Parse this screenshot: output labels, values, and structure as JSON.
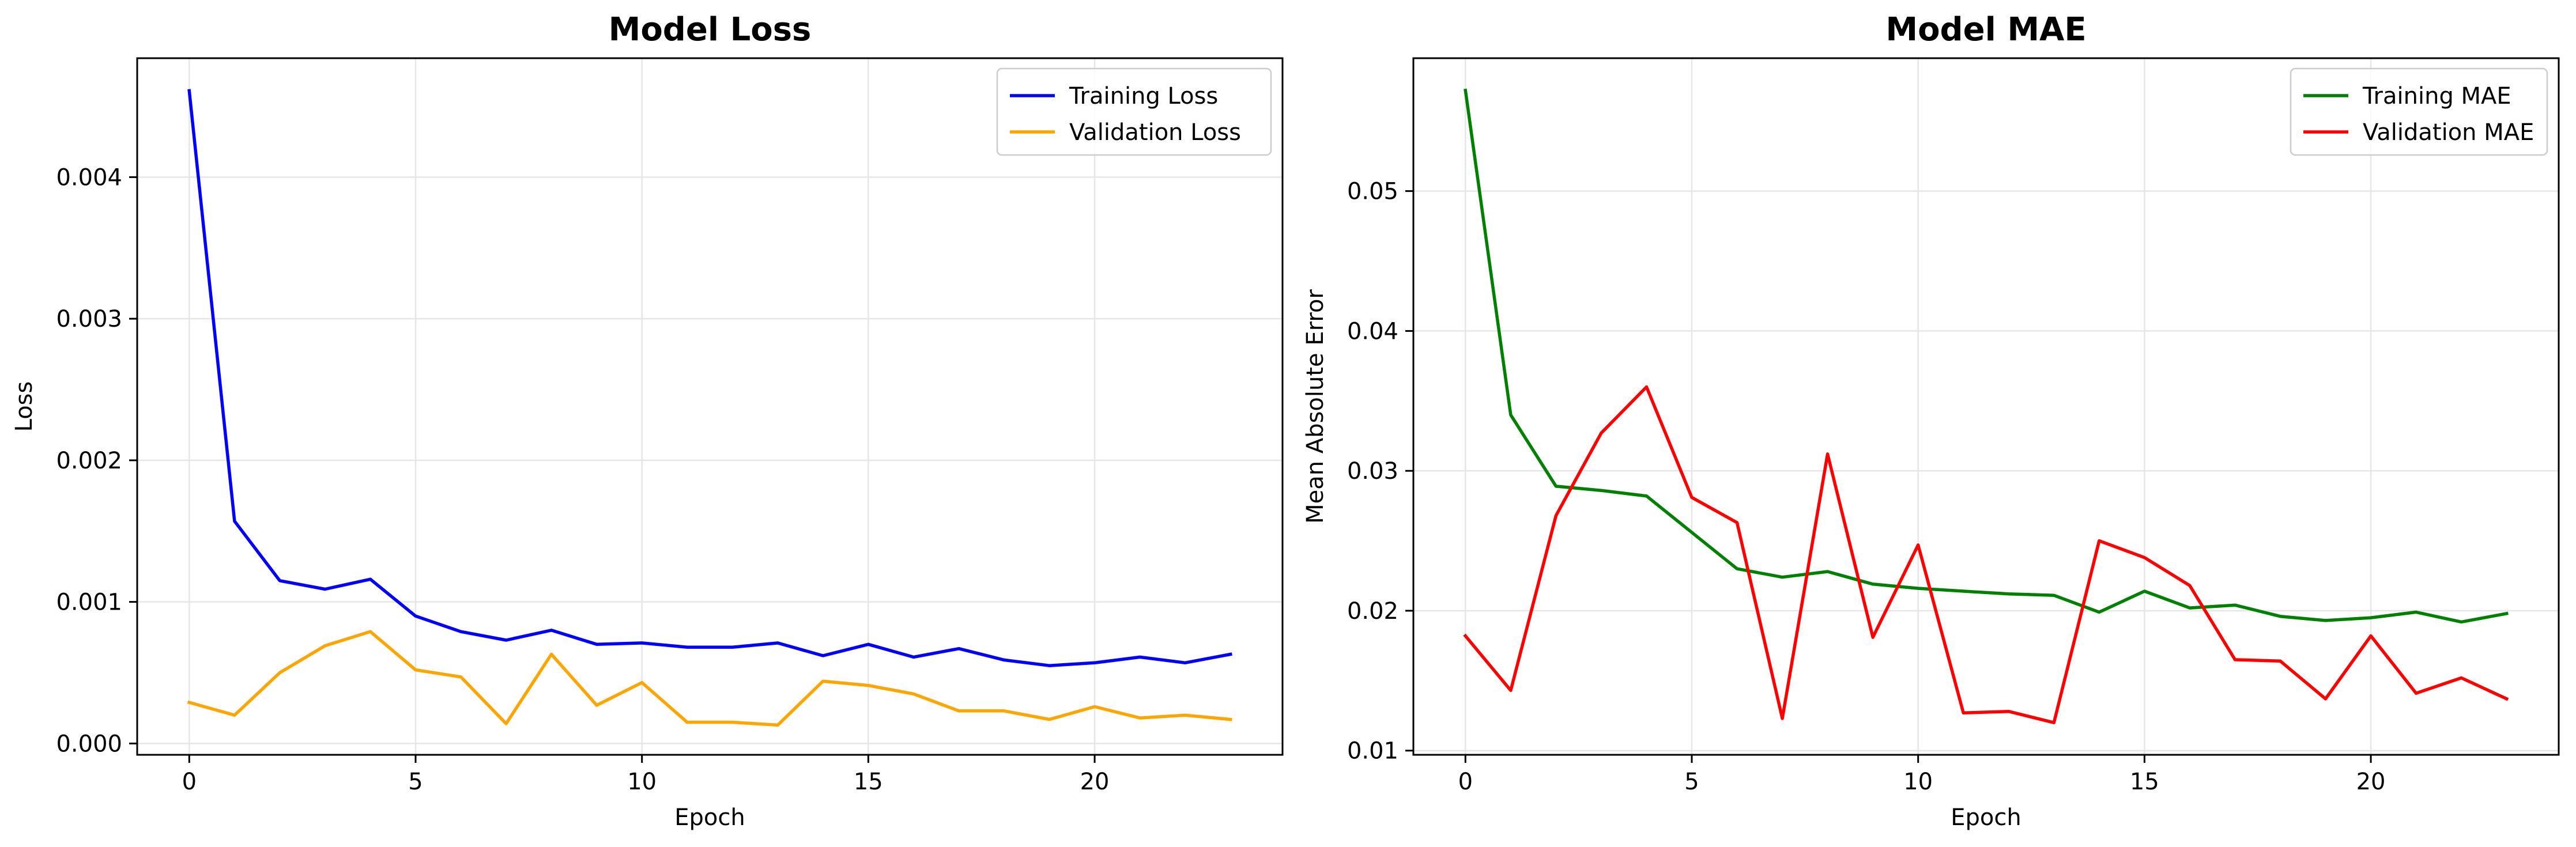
{
  "chart_data": [
    {
      "type": "line",
      "title": "Model Loss",
      "xlabel": "Epoch",
      "ylabel": "Loss",
      "xlim": [
        -1.15,
        24.15
      ],
      "ylim": [
        -8e-05,
        0.00484
      ],
      "xticks": [
        0,
        5,
        10,
        15,
        20
      ],
      "yticks": [
        0.0,
        0.001,
        0.002,
        0.003,
        0.004
      ],
      "xtick_labels": [
        "0",
        "5",
        "10",
        "15",
        "20"
      ],
      "ytick_labels": [
        "0.000",
        "0.001",
        "0.002",
        "0.003",
        "0.004"
      ],
      "grid": true,
      "legend": "upper right",
      "x": [
        0,
        1,
        2,
        3,
        4,
        5,
        6,
        7,
        8,
        9,
        10,
        11,
        12,
        13,
        14,
        15,
        16,
        17,
        18,
        19,
        20,
        21,
        22,
        23
      ],
      "series": [
        {
          "name": "Training Loss",
          "color": "#0000ff",
          "values": [
            0.00461,
            0.00157,
            0.00115,
            0.00109,
            0.00116,
            0.0009,
            0.00079,
            0.00073,
            0.0008,
            0.0007,
            0.00071,
            0.00068,
            0.00068,
            0.00071,
            0.00062,
            0.0007,
            0.00061,
            0.00067,
            0.00059,
            0.00055,
            0.00057,
            0.00061,
            0.00057,
            0.00063
          ]
        },
        {
          "name": "Validation Loss",
          "color": "#ffa500",
          "values": [
            0.00029,
            0.0002,
            0.0005,
            0.00069,
            0.00079,
            0.00052,
            0.00047,
            0.00014,
            0.00063,
            0.00027,
            0.00043,
            0.00015,
            0.00015,
            0.00013,
            0.00044,
            0.00041,
            0.00035,
            0.00023,
            0.00023,
            0.00017,
            0.00026,
            0.00018,
            0.0002,
            0.00017
          ]
        }
      ]
    },
    {
      "type": "line",
      "title": "Model MAE",
      "xlabel": "Epoch",
      "ylabel": "Mean Absolute Error",
      "xlim": [
        -1.15,
        24.15
      ],
      "ylim": [
        0.0097,
        0.0595
      ],
      "xticks": [
        0,
        5,
        10,
        15,
        20
      ],
      "yticks": [
        0.01,
        0.02,
        0.03,
        0.04,
        0.05
      ],
      "xtick_labels": [
        "0",
        "5",
        "10",
        "15",
        "20"
      ],
      "ytick_labels": [
        "0.01",
        "0.02",
        "0.03",
        "0.04",
        "0.05"
      ],
      "grid": true,
      "legend": "upper right",
      "x": [
        0,
        1,
        2,
        3,
        4,
        5,
        6,
        7,
        8,
        9,
        10,
        11,
        12,
        13,
        14,
        15,
        16,
        17,
        18,
        19,
        20,
        21,
        22,
        23
      ],
      "series": [
        {
          "name": "Training MAE",
          "color": "#008000",
          "values": [
            0.0572,
            0.034,
            0.0289,
            0.0286,
            0.0282,
            0.0256,
            0.023,
            0.0224,
            0.0228,
            0.0219,
            0.0216,
            0.0214,
            0.0212,
            0.0211,
            0.0199,
            0.0214,
            0.0202,
            0.0204,
            0.0196,
            0.0193,
            0.0195,
            0.0199,
            0.0192,
            0.0198
          ]
        },
        {
          "name": "Validation MAE",
          "color": "#ff0000",
          "values": [
            0.0182,
            0.0143,
            0.0268,
            0.0327,
            0.036,
            0.0281,
            0.0263,
            0.0123,
            0.0312,
            0.0181,
            0.0247,
            0.0127,
            0.0128,
            0.012,
            0.025,
            0.0238,
            0.0218,
            0.0165,
            0.0164,
            0.0137,
            0.0182,
            0.0141,
            0.0152,
            0.0137
          ]
        }
      ]
    }
  ]
}
